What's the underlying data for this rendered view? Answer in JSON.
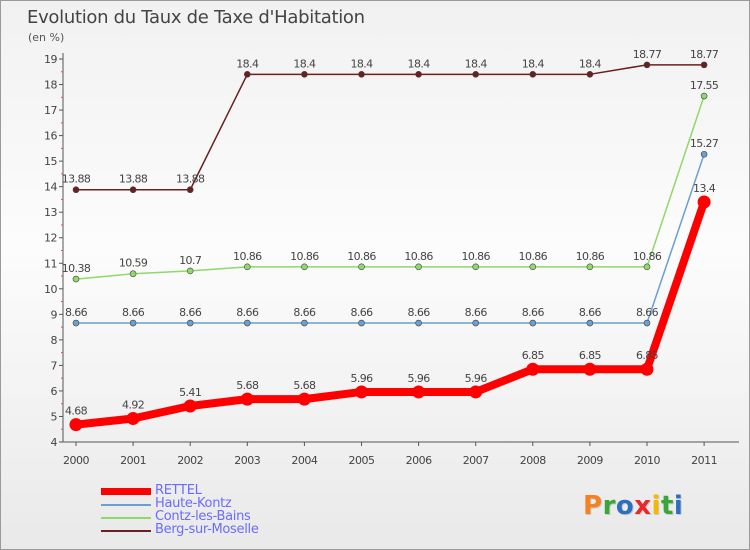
{
  "title": "Evolution du Taux de Taxe d'Habitation",
  "subtitle": "(en %)",
  "logo": {
    "letters": [
      "P",
      "r",
      "o",
      "x",
      "i",
      "t",
      "i"
    ],
    "colors": [
      "#f58220",
      "#3aa63a",
      "#2c6fbf",
      "#e8282b",
      "#f5b800",
      "#3aa63a",
      "#2c6fbf"
    ]
  },
  "chart_data": {
    "type": "line",
    "title": "Evolution du Taux de Taxe d'Habitation",
    "ylabel": "(en %)",
    "xlabel": "",
    "categories": [
      "2000",
      "2001",
      "2002",
      "2003",
      "2004",
      "2005",
      "2006",
      "2007",
      "2008",
      "2009",
      "2010",
      "2011"
    ],
    "ylim": [
      4,
      19
    ],
    "yticks": [
      "4",
      "5",
      "6",
      "7",
      "8",
      "9",
      "10",
      "11",
      "12",
      "13",
      "14",
      "15",
      "16",
      "17",
      "18",
      "19"
    ],
    "grid": false,
    "legend_position": "bottom-left",
    "series": [
      {
        "name": "Berg-sur-Moselle",
        "color": "#6b1f1f",
        "values": [
          13.88,
          13.88,
          13.88,
          18.4,
          18.4,
          18.4,
          18.4,
          18.4,
          18.4,
          18.4,
          18.77,
          18.77
        ],
        "labels": [
          "13.88",
          "13.88",
          "13.88",
          "18.4",
          "18.4",
          "18.4",
          "18.4",
          "18.4",
          "18.4",
          "18.4",
          "18.77",
          "18.77"
        ]
      },
      {
        "name": "Contz-les-Bains",
        "color": "#8fd86a",
        "values": [
          10.38,
          10.59,
          10.7,
          10.86,
          10.86,
          10.86,
          10.86,
          10.86,
          10.86,
          10.86,
          10.86,
          17.55
        ],
        "labels": [
          "10.38",
          "10.59",
          "10.7",
          "10.86",
          "10.86",
          "10.86",
          "10.86",
          "10.86",
          "10.86",
          "10.86",
          "10.86",
          "17.55"
        ]
      },
      {
        "name": "Haute-Kontz",
        "color": "#6a9fd0",
        "values": [
          8.66,
          8.66,
          8.66,
          8.66,
          8.66,
          8.66,
          8.66,
          8.66,
          8.66,
          8.66,
          8.66,
          15.27
        ],
        "labels": [
          "8.66",
          "8.66",
          "8.66",
          "8.66",
          "8.66",
          "8.66",
          "8.66",
          "8.66",
          "8.66",
          "8.66",
          "8.66",
          "15.27"
        ]
      },
      {
        "name": "RETTEL",
        "color": "#ff0000",
        "values": [
          4.68,
          4.92,
          5.41,
          5.68,
          5.68,
          5.96,
          5.96,
          5.96,
          6.85,
          6.85,
          6.85,
          13.4
        ],
        "labels": [
          "4.68",
          "4.92",
          "5.41",
          "5.68",
          "5.68",
          "5.96",
          "5.96",
          "5.96",
          "6.85",
          "6.85",
          "6.85",
          "13.4"
        ]
      }
    ],
    "legend": [
      "RETTEL",
      "Haute-Kontz",
      "Contz-les-Bains",
      "Berg-sur-Moselle"
    ]
  }
}
